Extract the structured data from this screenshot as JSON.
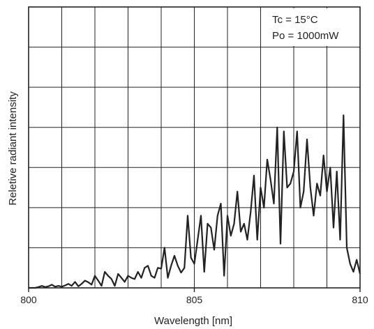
{
  "chart_data": {
    "type": "line",
    "xlabel": "Wavelength [nm]",
    "ylabel": "Reletive radiant intensity",
    "xlim": [
      800,
      810
    ],
    "ylim": [
      0,
      7
    ],
    "x_ticks": [
      800,
      805,
      810
    ],
    "x_tick_labels": [
      "800",
      "805",
      "810"
    ],
    "grid": true,
    "grid_x_step": 1,
    "grid_y_step": 1,
    "y_tick_labels_shown": false,
    "annotations": [
      "Tc = 15°C",
      "Po = 1000mW"
    ],
    "annotation_position": "top-right",
    "colors": {
      "line": "#222222",
      "grid": "#222222",
      "axis": "#222222"
    },
    "series": [
      {
        "x": [
          800.0,
          800.1,
          800.2,
          800.3,
          800.4,
          800.5,
          800.6,
          800.7,
          800.8,
          800.9,
          801.0,
          801.1,
          801.2,
          801.3,
          801.4,
          801.5,
          801.6,
          801.7,
          801.8,
          801.9,
          802.0,
          802.1,
          802.2,
          802.3,
          802.4,
          802.5,
          802.6,
          802.7,
          802.8,
          802.9,
          803.0,
          803.1,
          803.2,
          803.3,
          803.4,
          803.5,
          803.6,
          803.7,
          803.8,
          803.9,
          804.0,
          804.1,
          804.2,
          804.3,
          804.4,
          804.5,
          804.6,
          804.7,
          804.8,
          804.9,
          805.0,
          805.1,
          805.2,
          805.3,
          805.4,
          805.5,
          805.6,
          805.7,
          805.8,
          805.9,
          806.0,
          806.1,
          806.2,
          806.3,
          806.4,
          806.5,
          806.6,
          806.7,
          806.8,
          806.9,
          807.0,
          807.1,
          807.2,
          807.3,
          807.4,
          807.5,
          807.6,
          807.7,
          807.8,
          807.9,
          808.0,
          808.1,
          808.2,
          808.3,
          808.4,
          808.5,
          808.6,
          808.7,
          808.8,
          808.9,
          809.0,
          809.1,
          809.2,
          809.3,
          809.4,
          809.5,
          809.6,
          809.7,
          809.8,
          809.9,
          810.0
        ],
        "y": [
          0.0,
          0.0,
          0.0,
          0.02,
          0.05,
          0.02,
          0.04,
          0.08,
          0.03,
          0.05,
          0.03,
          0.06,
          0.1,
          0.05,
          0.15,
          0.04,
          0.1,
          0.18,
          0.14,
          0.08,
          0.3,
          0.18,
          0.05,
          0.4,
          0.3,
          0.22,
          0.05,
          0.35,
          0.25,
          0.15,
          0.3,
          0.25,
          0.22,
          0.4,
          0.25,
          0.5,
          0.55,
          0.3,
          0.25,
          0.5,
          0.48,
          1.0,
          0.25,
          0.55,
          0.8,
          0.55,
          0.38,
          0.5,
          1.8,
          0.75,
          0.6,
          1.2,
          1.8,
          0.4,
          1.6,
          1.5,
          0.95,
          1.8,
          2.1,
          0.3,
          1.8,
          1.3,
          1.6,
          2.4,
          1.4,
          1.6,
          1.2,
          1.9,
          2.8,
          1.2,
          2.5,
          2.0,
          3.2,
          2.7,
          2.1,
          4.0,
          1.1,
          3.9,
          2.5,
          2.6,
          2.9,
          3.9,
          2.0,
          2.4,
          3.7,
          2.5,
          1.8,
          2.6,
          2.3,
          3.3,
          2.4,
          3.0,
          1.5,
          2.9,
          1.2,
          4.3,
          1.0,
          0.6,
          0.4,
          0.7,
          0.35
        ]
      }
    ]
  }
}
